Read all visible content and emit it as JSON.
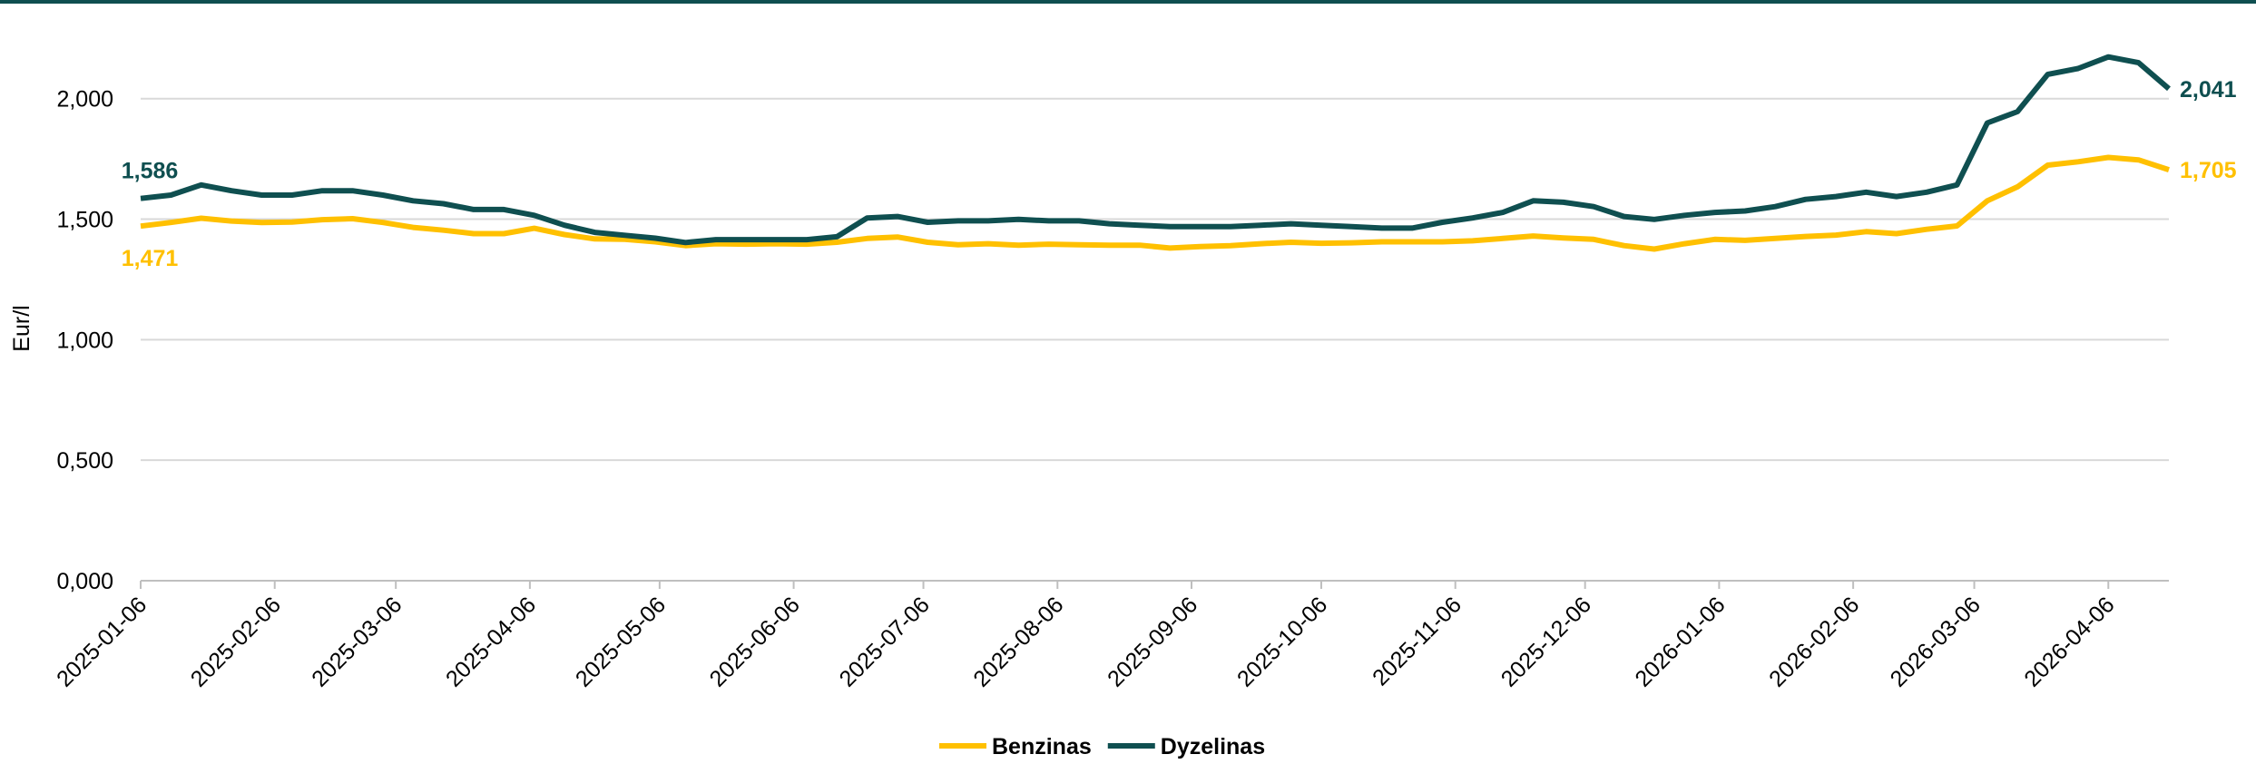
{
  "chart_data": {
    "type": "line",
    "y_label": "Eur/l",
    "x": [
      "2025-01-06",
      "2025-01-13",
      "2025-01-20",
      "2025-01-27",
      "2025-02-03",
      "2025-02-10",
      "2025-02-17",
      "2025-02-24",
      "2025-03-03",
      "2025-03-10",
      "2025-03-17",
      "2025-03-24",
      "2025-03-31",
      "2025-04-07",
      "2025-04-14",
      "2025-04-21",
      "2025-04-28",
      "2025-05-05",
      "2025-05-12",
      "2025-05-19",
      "2025-05-26",
      "2025-06-02",
      "2025-06-09",
      "2025-06-16",
      "2025-06-23",
      "2025-06-30",
      "2025-07-07",
      "2025-07-14",
      "2025-07-21",
      "2025-07-28",
      "2025-08-04",
      "2025-08-11",
      "2025-08-18",
      "2025-08-25",
      "2025-09-01",
      "2025-09-08",
      "2025-09-15",
      "2025-09-22",
      "2025-09-29",
      "2025-10-06",
      "2025-10-13",
      "2025-10-20",
      "2025-10-27",
      "2025-11-03",
      "2025-11-10",
      "2025-11-17",
      "2025-11-24",
      "2025-12-01",
      "2025-12-08",
      "2025-12-15",
      "2025-12-22",
      "2025-12-29",
      "2026-01-05",
      "2026-01-12",
      "2026-01-19",
      "2026-01-26",
      "2026-02-02",
      "2026-02-09",
      "2026-02-16",
      "2026-02-23",
      "2026-03-02",
      "2026-03-09",
      "2026-03-16",
      "2026-03-23",
      "2026-03-30",
      "2026-04-06",
      "2026-04-13",
      "2026-04-20"
    ],
    "xlim": [
      "2025-01-06",
      "2026-04-20"
    ],
    "xticks": [
      "2025-01-06",
      "2025-02-06",
      "2025-03-06",
      "2025-04-06",
      "2025-05-06",
      "2025-06-06",
      "2025-07-06",
      "2025-08-06",
      "2025-09-06",
      "2025-10-06",
      "2025-11-06",
      "2025-12-06",
      "2026-01-06",
      "2026-02-06",
      "2026-03-06",
      "2026-04-06"
    ],
    "ylim": [
      0,
      2.3
    ],
    "yticks": [
      {
        "value": 0,
        "label": "0,000"
      },
      {
        "value": 0.5,
        "label": "0,500"
      },
      {
        "value": 1,
        "label": "1,000"
      },
      {
        "value": 1.5,
        "label": "1,500"
      },
      {
        "value": 2,
        "label": "2,000"
      }
    ],
    "grid": true,
    "legend": "bottom",
    "series": [
      {
        "name": "Benzinas",
        "color": "#ffc000",
        "values": [
          1.471,
          1.486,
          1.504,
          1.492,
          1.486,
          1.488,
          1.498,
          1.502,
          1.486,
          1.466,
          1.454,
          1.44,
          1.44,
          1.462,
          1.436,
          1.418,
          1.416,
          1.406,
          1.39,
          1.398,
          1.396,
          1.398,
          1.396,
          1.404,
          1.42,
          1.426,
          1.404,
          1.394,
          1.398,
          1.392,
          1.396,
          1.394,
          1.392,
          1.392,
          1.38,
          1.386,
          1.39,
          1.398,
          1.404,
          1.4,
          1.402,
          1.406,
          1.406,
          1.406,
          1.41,
          1.42,
          1.43,
          1.422,
          1.416,
          1.39,
          1.376,
          1.398,
          1.416,
          1.412,
          1.42,
          1.428,
          1.434,
          1.448,
          1.44,
          1.458,
          1.472,
          1.576,
          1.634,
          1.724,
          1.738,
          1.756,
          1.746,
          1.705
        ],
        "value_labels": [
          "1,471",
          null,
          null,
          null,
          null,
          null,
          null,
          null,
          null,
          null,
          null,
          null,
          null,
          null,
          null,
          null,
          null,
          null,
          null,
          null,
          null,
          null,
          null,
          null,
          null,
          null,
          null,
          null,
          null,
          null,
          null,
          null,
          null,
          null,
          null,
          null,
          null,
          null,
          null,
          null,
          null,
          null,
          null,
          null,
          null,
          null,
          null,
          null,
          null,
          null,
          null,
          null,
          null,
          null,
          null,
          null,
          null,
          null,
          null,
          null,
          null,
          null,
          null,
          null,
          null,
          null,
          null,
          "1,705"
        ]
      },
      {
        "name": "Dyzelinas",
        "color": "#0f4f50",
        "values": [
          1.586,
          1.6,
          1.642,
          1.618,
          1.6,
          1.6,
          1.618,
          1.618,
          1.6,
          1.576,
          1.564,
          1.54,
          1.54,
          1.516,
          1.475,
          1.445,
          1.433,
          1.421,
          1.403,
          1.415,
          1.415,
          1.415,
          1.415,
          1.427,
          1.505,
          1.511,
          1.487,
          1.493,
          1.493,
          1.499,
          1.493,
          1.493,
          1.481,
          1.475,
          1.469,
          1.469,
          1.469,
          1.475,
          1.481,
          1.475,
          1.469,
          1.463,
          1.463,
          1.487,
          1.505,
          1.528,
          1.576,
          1.57,
          1.552,
          1.511,
          1.499,
          1.516,
          1.528,
          1.534,
          1.552,
          1.582,
          1.594,
          1.612,
          1.594,
          1.612,
          1.642,
          1.899,
          1.946,
          2.101,
          2.125,
          2.173,
          2.149,
          2.041
        ],
        "value_labels": [
          "1,586",
          null,
          null,
          null,
          null,
          null,
          null,
          null,
          null,
          null,
          null,
          null,
          null,
          null,
          null,
          null,
          null,
          null,
          null,
          null,
          null,
          null,
          null,
          null,
          null,
          null,
          null,
          null,
          null,
          null,
          null,
          null,
          null,
          null,
          null,
          null,
          null,
          null,
          null,
          null,
          null,
          null,
          null,
          null,
          null,
          null,
          null,
          null,
          null,
          null,
          null,
          null,
          null,
          null,
          null,
          null,
          null,
          null,
          null,
          null,
          null,
          null,
          null,
          null,
          null,
          null,
          null,
          "2,041"
        ]
      }
    ]
  }
}
